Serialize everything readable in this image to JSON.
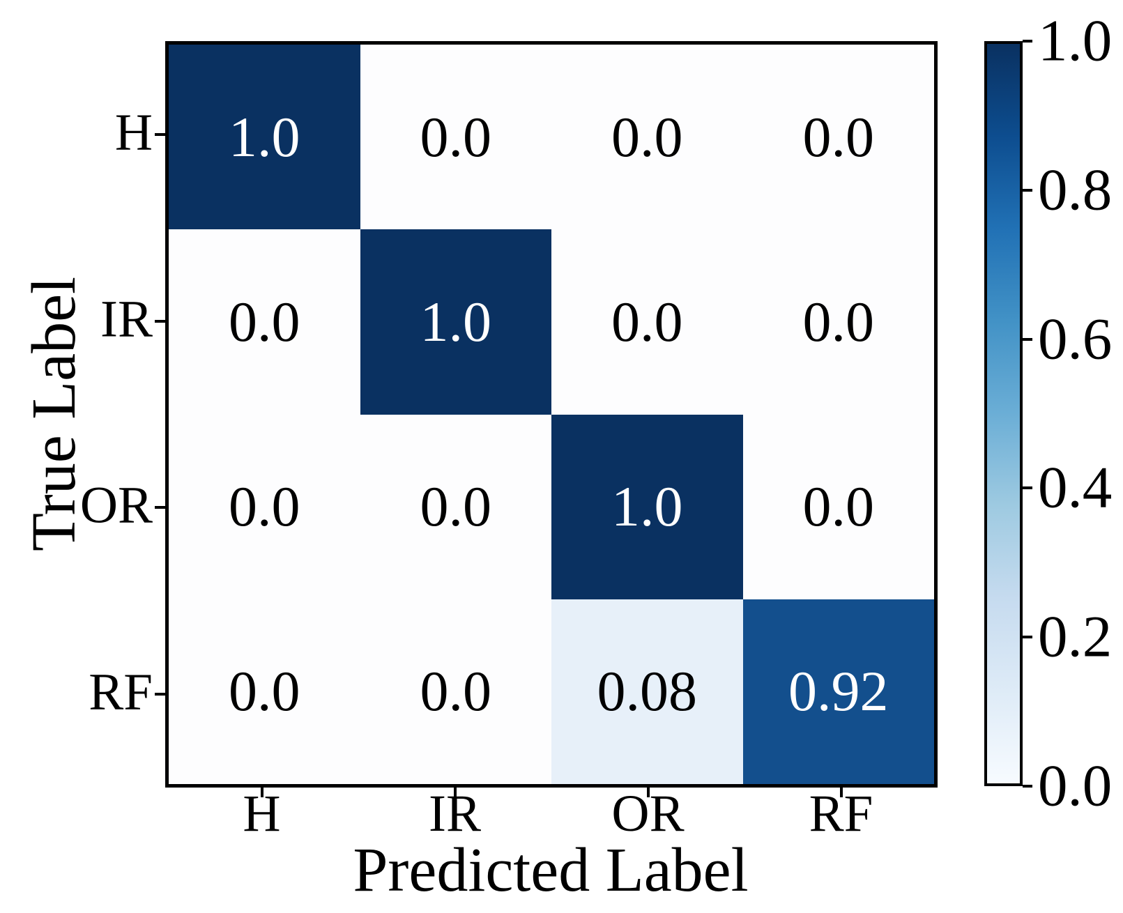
{
  "chart_data": {
    "type": "heatmap",
    "title": "",
    "xlabel": "Predicted Label",
    "ylabel": "True Label",
    "x_categories": [
      "H",
      "IR",
      "OR",
      "RF"
    ],
    "y_categories": [
      "H",
      "IR",
      "OR",
      "RF"
    ],
    "matrix": [
      [
        1.0,
        0.0,
        0.0,
        0.0
      ],
      [
        0.0,
        1.0,
        0.0,
        0.0
      ],
      [
        0.0,
        0.0,
        1.0,
        0.0
      ],
      [
        0.0,
        0.0,
        0.08,
        0.92
      ]
    ],
    "cell_labels": [
      [
        "1.0",
        "0.0",
        "0.0",
        "0.0"
      ],
      [
        "0.0",
        "1.0",
        "0.0",
        "0.0"
      ],
      [
        "0.0",
        "0.0",
        "1.0",
        "0.0"
      ],
      [
        "0.0",
        "0.0",
        "0.08",
        "0.92"
      ]
    ],
    "colormap": "Blues",
    "value_range": [
      0.0,
      1.0
    ],
    "grid": false,
    "legend_position": "right-colorbar",
    "colorbar_tick_labels": [
      "1.0",
      "0.8",
      "0.6",
      "0.4",
      "0.2",
      "0.0"
    ]
  },
  "colors": {
    "axis": "#000000",
    "background": "#ffffff",
    "annotation_on_dark": "#ffffff",
    "annotation_on_light": "#000000",
    "cell_colors": [
      [
        "#0a3161",
        "#fdfdfe",
        "#fdfdfe",
        "#fdfdfe"
      ],
      [
        "#fdfdfe",
        "#0a3161",
        "#fdfdfe",
        "#fdfdfe"
      ],
      [
        "#fdfdfe",
        "#fdfdfe",
        "#0a3161",
        "#fdfdfe"
      ],
      [
        "#fdfdfe",
        "#fdfdfe",
        "#e7f0f9",
        "#134f8d"
      ]
    ],
    "cell_text_colors": [
      [
        "#ffffff",
        "#000000",
        "#000000",
        "#000000"
      ],
      [
        "#000000",
        "#ffffff",
        "#000000",
        "#000000"
      ],
      [
        "#000000",
        "#000000",
        "#ffffff",
        "#000000"
      ],
      [
        "#000000",
        "#000000",
        "#000000",
        "#ffffff"
      ]
    ],
    "colorbar_stops_top_to_bottom": [
      "#0a3161",
      "#0d4d8f",
      "#2171b5",
      "#4292c6",
      "#6baed6",
      "#9ecae1",
      "#c6dbef",
      "#deebf7",
      "#f7fbff"
    ]
  }
}
